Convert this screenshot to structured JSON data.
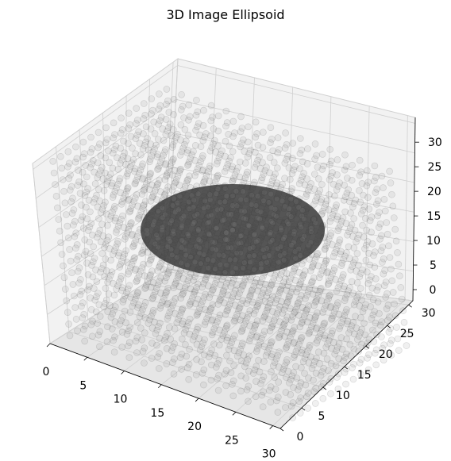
{
  "chart_data": {
    "type": "scatter",
    "projection": "3d",
    "title": "3D Image Ellipsoid",
    "grid_size": [
      32,
      32,
      32
    ],
    "xlim": [
      0,
      31
    ],
    "ylim": [
      0,
      31
    ],
    "zlim": [
      0,
      31
    ],
    "xticks": [
      "0",
      "5",
      "10",
      "15",
      "20",
      "25",
      "30"
    ],
    "yticks": [
      "0",
      "5",
      "10",
      "15",
      "20",
      "25",
      "30"
    ],
    "zticks": [
      "0",
      "5",
      "10",
      "15",
      "20",
      "25",
      "30"
    ],
    "grid": true,
    "marker_color": "#808080",
    "marker_alpha": 0.2,
    "ellipsoid": {
      "center": [
        15.5,
        15.5,
        15.5
      ],
      "radii": [
        14,
        10,
        4
      ],
      "description": "darker ellipsoid region inside the voxel cube"
    },
    "pane_color": "#f2f2f2"
  }
}
